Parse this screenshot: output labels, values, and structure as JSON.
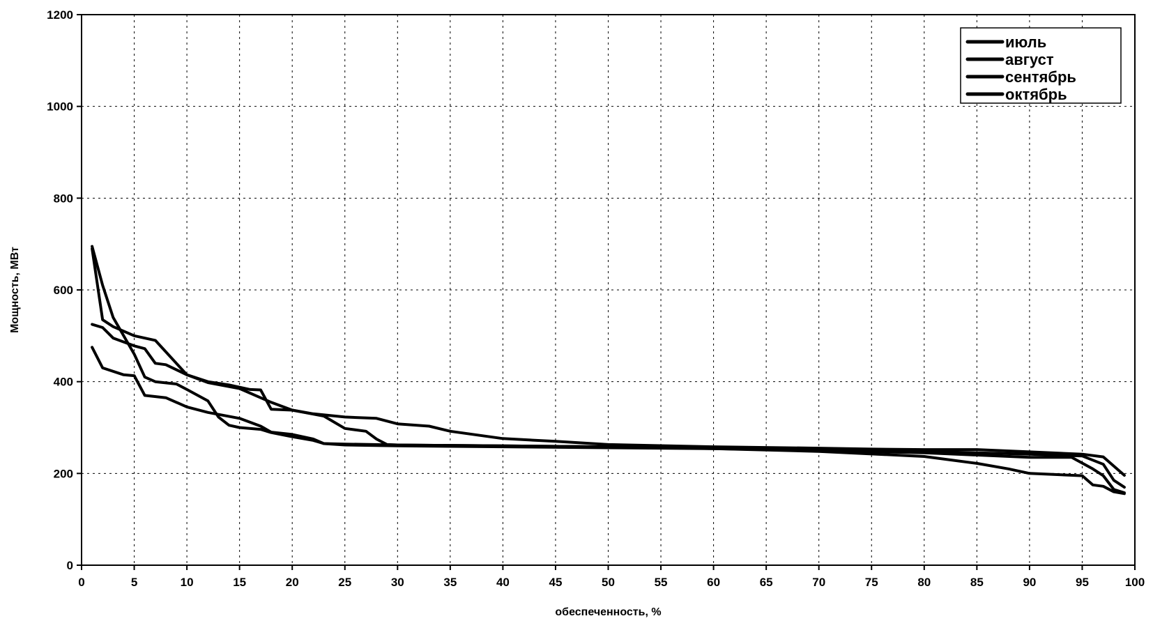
{
  "chart_data": {
    "type": "line",
    "xlabel": "обеспеченность, %",
    "ylabel": "Мощность, МВт",
    "xlim": [
      0,
      100
    ],
    "ylim": [
      0,
      1200
    ],
    "xticks": [
      0,
      5,
      10,
      15,
      20,
      25,
      30,
      35,
      40,
      45,
      50,
      55,
      60,
      65,
      70,
      75,
      80,
      85,
      90,
      95,
      100
    ],
    "yticks": [
      0,
      200,
      400,
      600,
      800,
      1000,
      1200
    ],
    "grid": true,
    "legend_position": "top-right",
    "series": [
      {
        "name": "июль",
        "color": "#000000",
        "points": [
          [
            1,
            690
          ],
          [
            2,
            535
          ],
          [
            3,
            520
          ],
          [
            5,
            500
          ],
          [
            7,
            490
          ],
          [
            9,
            440
          ],
          [
            10,
            415
          ],
          [
            12,
            398
          ],
          [
            15,
            385
          ],
          [
            18,
            355
          ],
          [
            20,
            338
          ],
          [
            22,
            330
          ],
          [
            25,
            323
          ],
          [
            28,
            320
          ],
          [
            30,
            308
          ],
          [
            33,
            303
          ],
          [
            35,
            292
          ],
          [
            40,
            276
          ],
          [
            45,
            270
          ],
          [
            50,
            263
          ],
          [
            60,
            258
          ],
          [
            70,
            255
          ],
          [
            75,
            253
          ],
          [
            80,
            252
          ],
          [
            85,
            252
          ],
          [
            90,
            247
          ],
          [
            95,
            242
          ],
          [
            97,
            236
          ],
          [
            99,
            196
          ]
        ]
      },
      {
        "name": "август",
        "color": "#000000",
        "points": [
          [
            1,
            695
          ],
          [
            2,
            610
          ],
          [
            3,
            540
          ],
          [
            5,
            460
          ],
          [
            6,
            410
          ],
          [
            7,
            400
          ],
          [
            9,
            395
          ],
          [
            10,
            383
          ],
          [
            12,
            358
          ],
          [
            13,
            323
          ],
          [
            14,
            305
          ],
          [
            15,
            300
          ],
          [
            17,
            296
          ],
          [
            18,
            289
          ],
          [
            20,
            280
          ],
          [
            22,
            272
          ],
          [
            23,
            265
          ],
          [
            25,
            264
          ],
          [
            30,
            262
          ],
          [
            40,
            260
          ],
          [
            50,
            258
          ],
          [
            60,
            254
          ],
          [
            70,
            248
          ],
          [
            80,
            237
          ],
          [
            85,
            222
          ],
          [
            88,
            210
          ],
          [
            90,
            200
          ],
          [
            95,
            195
          ],
          [
            96,
            175
          ],
          [
            97,
            172
          ],
          [
            98,
            160
          ],
          [
            99,
            156
          ]
        ]
      },
      {
        "name": "сентябрь",
        "color": "#000000",
        "points": [
          [
            1,
            525
          ],
          [
            2,
            518
          ],
          [
            3,
            495
          ],
          [
            5,
            478
          ],
          [
            6,
            472
          ],
          [
            7,
            440
          ],
          [
            8,
            437
          ],
          [
            10,
            415
          ],
          [
            12,
            400
          ],
          [
            14,
            393
          ],
          [
            16,
            383
          ],
          [
            17,
            382
          ],
          [
            18,
            340
          ],
          [
            20,
            338
          ],
          [
            23,
            325
          ],
          [
            25,
            298
          ],
          [
            27,
            292
          ],
          [
            28,
            275
          ],
          [
            29,
            263
          ],
          [
            30,
            262
          ],
          [
            40,
            260
          ],
          [
            50,
            258
          ],
          [
            60,
            255
          ],
          [
            70,
            250
          ],
          [
            80,
            245
          ],
          [
            90,
            235
          ],
          [
            94,
            235
          ],
          [
            96,
            210
          ],
          [
            97,
            195
          ],
          [
            98,
            165
          ],
          [
            99,
            158
          ]
        ]
      },
      {
        "name": "октябрь",
        "color": "#000000",
        "points": [
          [
            1,
            475
          ],
          [
            2,
            430
          ],
          [
            4,
            415
          ],
          [
            5,
            413
          ],
          [
            6,
            370
          ],
          [
            8,
            365
          ],
          [
            10,
            345
          ],
          [
            12,
            333
          ],
          [
            15,
            320
          ],
          [
            17,
            303
          ],
          [
            18,
            290
          ],
          [
            20,
            285
          ],
          [
            22,
            275
          ],
          [
            23,
            265
          ],
          [
            25,
            262
          ],
          [
            30,
            260
          ],
          [
            40,
            258
          ],
          [
            50,
            256
          ],
          [
            60,
            254
          ],
          [
            70,
            250
          ],
          [
            80,
            248
          ],
          [
            90,
            242
          ],
          [
            95,
            238
          ],
          [
            97,
            220
          ],
          [
            98,
            185
          ],
          [
            99,
            170
          ]
        ]
      }
    ]
  }
}
